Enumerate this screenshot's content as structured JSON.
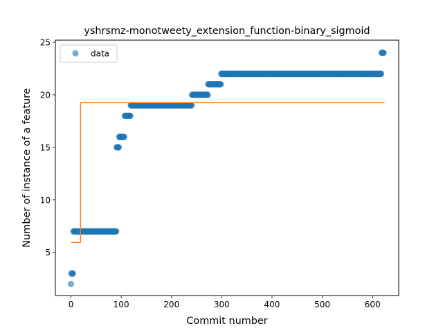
{
  "chart_data": {
    "type": "scatter",
    "title": "yshrsmz-monotweety_extension_function-binary_sigmoid",
    "xlabel": "Commit number",
    "ylabel": "Number of instance of a feature",
    "xlim": [
      -31,
      652
    ],
    "ylim": [
      0.9,
      25.2
    ],
    "xticks": [
      0,
      100,
      200,
      300,
      400,
      500,
      600
    ],
    "yticks": [
      5,
      10,
      15,
      20,
      25
    ],
    "grid": false,
    "legend": {
      "position": "top-left",
      "entries": [
        "data"
      ]
    },
    "colors": {
      "data": "#1f77b4",
      "fit": "#ff7f0e"
    },
    "series": [
      {
        "name": "data",
        "kind": "scatter",
        "segments": [
          {
            "x_start": 0,
            "x_end": 0,
            "y": 2
          },
          {
            "x_start": 1,
            "x_end": 4,
            "y": 3
          },
          {
            "x_start": 5,
            "x_end": 90,
            "y": 7
          },
          {
            "x_start": 91,
            "x_end": 95,
            "y": 15
          },
          {
            "x_start": 96,
            "x_end": 106,
            "y": 16
          },
          {
            "x_start": 107,
            "x_end": 118,
            "y": 18
          },
          {
            "x_start": 119,
            "x_end": 240,
            "y": 19
          },
          {
            "x_start": 241,
            "x_end": 272,
            "y": 20
          },
          {
            "x_start": 273,
            "x_end": 298,
            "y": 21
          },
          {
            "x_start": 299,
            "x_end": 617,
            "y": 22
          },
          {
            "x_start": 618,
            "x_end": 622,
            "y": 24
          }
        ]
      },
      {
        "kind": "step-line",
        "x": [
          0,
          19,
          19,
          624
        ],
        "y": [
          5.95,
          5.95,
          19.25,
          19.25
        ]
      }
    ]
  }
}
